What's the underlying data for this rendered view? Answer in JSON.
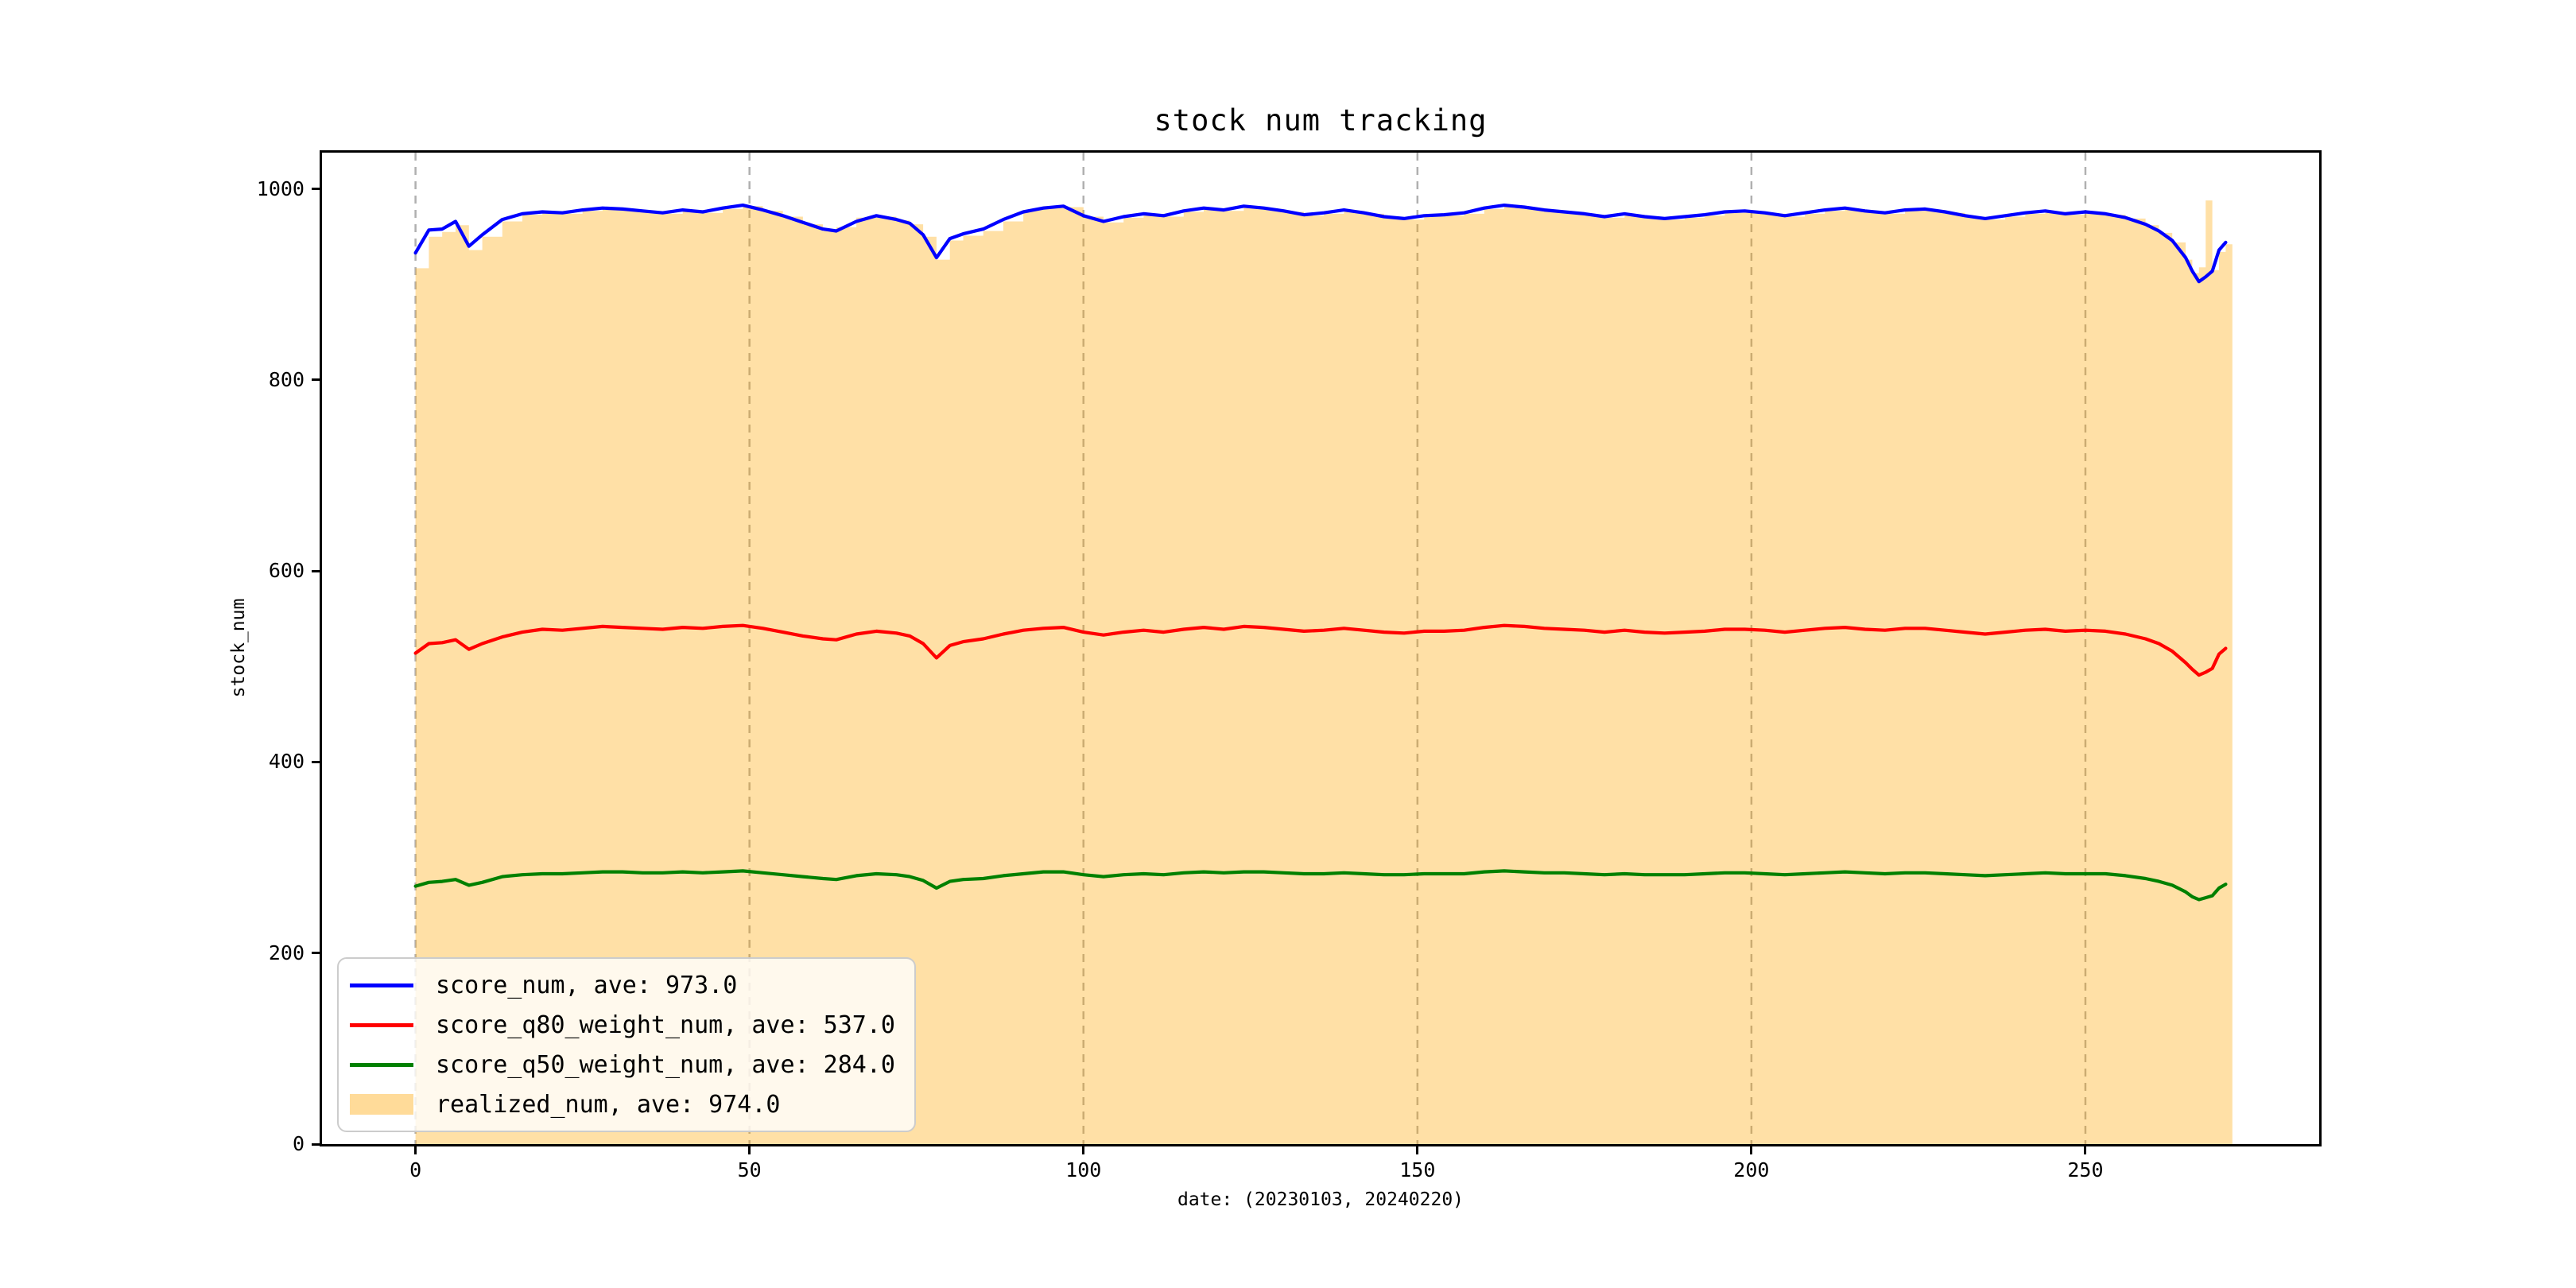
{
  "chart_data": {
    "type": "line",
    "title": "stock num tracking",
    "xlabel": "date: (20230103, 20240220)",
    "ylabel": "stock_num",
    "xlim": [
      -14,
      285
    ],
    "ylim": [
      0,
      1038
    ],
    "xticks": [
      0,
      50,
      100,
      150,
      200,
      250
    ],
    "yticks": [
      0,
      200,
      400,
      600,
      800,
      1000
    ],
    "grid": "vertical-dashed",
    "grid_color": "#b0b0b0",
    "spine_color": "#000000",
    "legend": {
      "position": "lower-left",
      "background": "rgba(255,255,255,0.8)",
      "border_color": "#cccccc"
    },
    "x": [
      0,
      2,
      4,
      6,
      8,
      10,
      13,
      16,
      19,
      22,
      25,
      28,
      31,
      34,
      37,
      40,
      43,
      46,
      49,
      52,
      55,
      58,
      61,
      63,
      66,
      69,
      72,
      74,
      76,
      78,
      80,
      82,
      85,
      88,
      91,
      94,
      97,
      100,
      103,
      106,
      109,
      112,
      115,
      118,
      121,
      124,
      127,
      130,
      133,
      136,
      139,
      142,
      145,
      148,
      151,
      154,
      157,
      160,
      163,
      166,
      169,
      172,
      175,
      178,
      181,
      184,
      187,
      190,
      193,
      196,
      199,
      202,
      205,
      208,
      211,
      214,
      217,
      220,
      223,
      226,
      229,
      232,
      235,
      238,
      241,
      244,
      247,
      250,
      253,
      256,
      259,
      261,
      263,
      265,
      266,
      267,
      268,
      269,
      270,
      271
    ],
    "series": [
      {
        "name": "score_num",
        "label": "score_num, ave: 973.0",
        "ave": 973.0,
        "type": "line",
        "color": "#0000ff",
        "values": [
          933,
          957,
          958,
          966,
          940,
          952,
          968,
          974,
          976,
          975,
          978,
          980,
          979,
          977,
          975,
          978,
          976,
          980,
          983,
          978,
          972,
          965,
          958,
          956,
          966,
          972,
          968,
          964,
          952,
          928,
          948,
          953,
          958,
          968,
          976,
          980,
          982,
          972,
          966,
          971,
          974,
          972,
          977,
          980,
          978,
          982,
          980,
          977,
          973,
          975,
          978,
          975,
          971,
          969,
          972,
          973,
          975,
          980,
          983,
          981,
          978,
          976,
          974,
          971,
          974,
          971,
          969,
          971,
          973,
          976,
          977,
          975,
          972,
          975,
          978,
          980,
          977,
          975,
          978,
          979,
          976,
          972,
          969,
          972,
          975,
          977,
          974,
          976,
          974,
          970,
          963,
          956,
          946,
          928,
          914,
          903,
          908,
          914,
          936,
          944
        ]
      },
      {
        "name": "score_q80_weight_num",
        "label": "score_q80_weight_num, ave: 537.0",
        "ave": 537.0,
        "type": "line",
        "color": "#ff0000",
        "values": [
          514,
          524,
          525,
          528,
          518,
          524,
          531,
          536,
          539,
          538,
          540,
          542,
          541,
          540,
          539,
          541,
          540,
          542,
          543,
          540,
          536,
          532,
          529,
          528,
          534,
          537,
          535,
          532,
          524,
          509,
          522,
          526,
          529,
          534,
          538,
          540,
          541,
          536,
          533,
          536,
          538,
          536,
          539,
          541,
          539,
          542,
          541,
          539,
          537,
          538,
          540,
          538,
          536,
          535,
          537,
          537,
          538,
          541,
          543,
          542,
          540,
          539,
          538,
          536,
          538,
          536,
          535,
          536,
          537,
          539,
          539,
          538,
          536,
          538,
          540,
          541,
          539,
          538,
          540,
          540,
          538,
          536,
          534,
          536,
          538,
          539,
          537,
          538,
          537,
          534,
          529,
          524,
          516,
          504,
          497,
          491,
          494,
          498,
          513,
          519
        ]
      },
      {
        "name": "score_q50_weight_num",
        "label": "score_q50_weight_num, ave: 284.0",
        "ave": 284.0,
        "type": "line",
        "color": "#008000",
        "values": [
          270,
          274,
          275,
          277,
          271,
          274,
          280,
          282,
          283,
          283,
          284,
          285,
          285,
          284,
          284,
          285,
          284,
          285,
          286,
          284,
          282,
          280,
          278,
          277,
          281,
          283,
          282,
          280,
          276,
          268,
          275,
          277,
          278,
          281,
          283,
          285,
          285,
          282,
          280,
          282,
          283,
          282,
          284,
          285,
          284,
          285,
          285,
          284,
          283,
          283,
          284,
          283,
          282,
          282,
          283,
          283,
          283,
          285,
          286,
          285,
          284,
          284,
          283,
          282,
          283,
          282,
          282,
          282,
          283,
          284,
          284,
          283,
          282,
          283,
          284,
          285,
          284,
          283,
          284,
          284,
          283,
          282,
          281,
          282,
          283,
          284,
          283,
          283,
          283,
          281,
          278,
          275,
          271,
          264,
          259,
          256,
          258,
          260,
          268,
          272
        ]
      },
      {
        "name": "realized_num",
        "label": "realized_num, ave: 974.0",
        "ave": 974.0,
        "type": "area-step",
        "color": "#ffa500",
        "fill_alpha": 0.35,
        "values": [
          917,
          950,
          955,
          962,
          936,
          950,
          966,
          973,
          975,
          974,
          977,
          979,
          978,
          976,
          974,
          977,
          975,
          979,
          982,
          977,
          971,
          963,
          956,
          960,
          970,
          971,
          967,
          963,
          950,
          926,
          946,
          951,
          956,
          966,
          978,
          982,
          981,
          971,
          965,
          970,
          973,
          971,
          976,
          979,
          977,
          981,
          979,
          976,
          972,
          974,
          977,
          974,
          970,
          968,
          971,
          972,
          974,
          979,
          982,
          980,
          977,
          975,
          973,
          970,
          973,
          970,
          968,
          970,
          972,
          975,
          976,
          974,
          971,
          974,
          977,
          979,
          976,
          974,
          977,
          978,
          975,
          971,
          968,
          971,
          974,
          976,
          973,
          975,
          973,
          969,
          962,
          954,
          944,
          926,
          912,
          918,
          988,
          915,
          934,
          942
        ]
      }
    ]
  }
}
